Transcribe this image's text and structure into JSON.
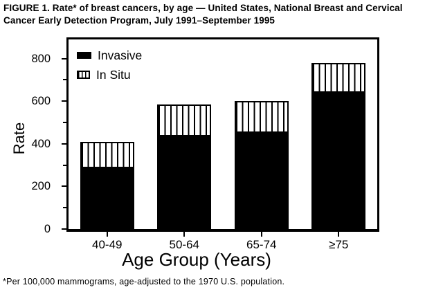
{
  "figure": {
    "title": "FIGURE 1. Rate* of breast cancers, by age — United States, National Breast and Cervical Cancer Early Detection Program, July 1991–September 1995",
    "footnote": "*Per 100,000 mammograms, age-adjusted to the 1970 U.S. population."
  },
  "chart_data": {
    "type": "bar",
    "stacked": true,
    "title": "FIGURE 1. Rate* of breast cancers, by age — United States, National Breast and Cervical Cancer Early Detection Program, July 1991–September 1995",
    "categories": [
      "40-49",
      "50-64",
      "65-74",
      "≥75"
    ],
    "series": [
      {
        "name": "Invasive",
        "style": "solid-black",
        "values": [
          285,
          435,
          450,
          640
        ]
      },
      {
        "name": "In Situ",
        "style": "vertical-hatch",
        "values": [
          125,
          150,
          150,
          140
        ]
      }
    ],
    "stacked_totals": [
      410,
      585,
      600,
      780
    ],
    "xlabel": "Age Group (Years)",
    "ylabel": "Rate",
    "ylim": [
      0,
      890
    ],
    "yticks_major": [
      0,
      200,
      400,
      600,
      800
    ],
    "yticks_minor": [
      100,
      300,
      500,
      700
    ],
    "grid": false,
    "legend_position": "top-left-inside",
    "colors": {
      "foreground": "#000000",
      "background": "#ffffff"
    }
  }
}
